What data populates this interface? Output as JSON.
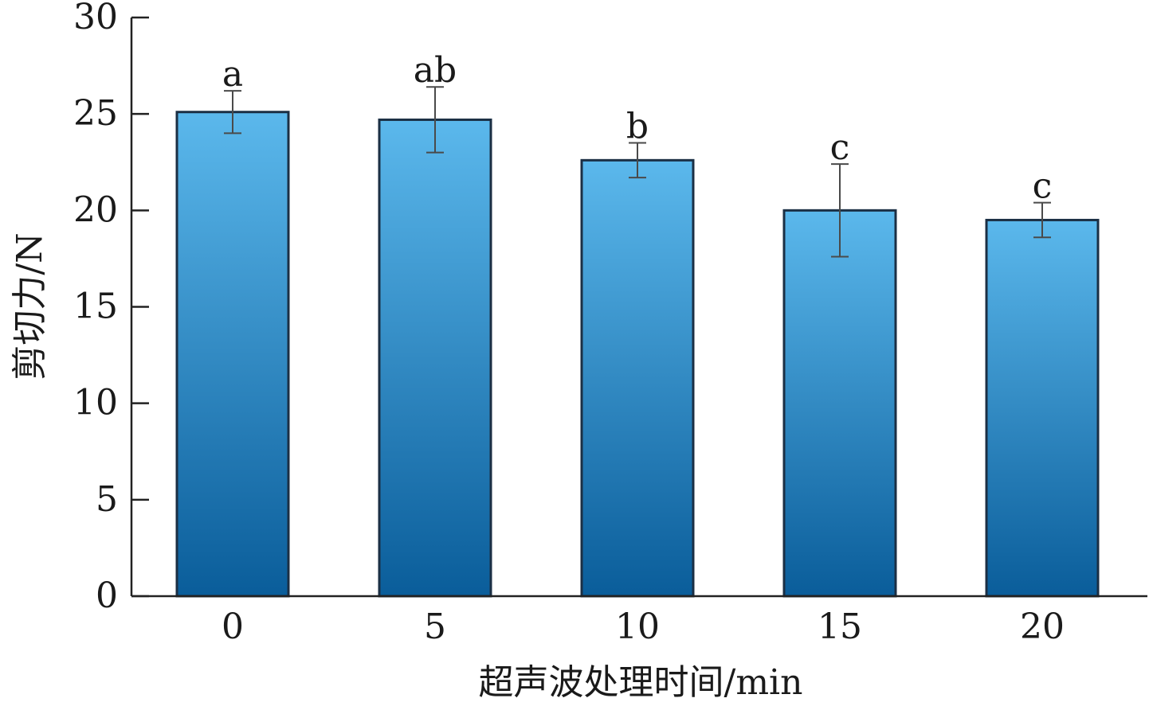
{
  "chart_data": {
    "type": "bar",
    "title": "",
    "xlabel": "超声波处理时间/min",
    "ylabel": "剪切力/N",
    "categories": [
      "0",
      "5",
      "10",
      "15",
      "20"
    ],
    "values": [
      25.1,
      24.7,
      22.6,
      20.0,
      19.5
    ],
    "errors": [
      1.1,
      1.7,
      0.9,
      2.4,
      0.9
    ],
    "significance": [
      "a",
      "ab",
      "b",
      "c",
      "c"
    ],
    "ylim": [
      0,
      30
    ],
    "yticks": [
      "0",
      "5",
      "10",
      "15",
      "20",
      "25",
      "30"
    ],
    "grid": false,
    "legend": "none",
    "colors": {
      "bar_top": "#5bb8ec",
      "bar_bottom": "#0a5d9a",
      "bar_edge": "#1b2f44"
    }
  }
}
